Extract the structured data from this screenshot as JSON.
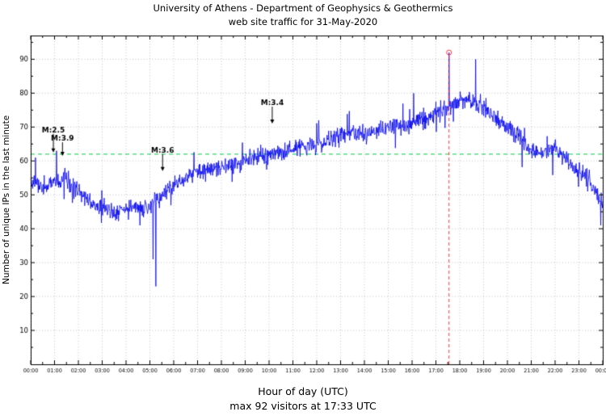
{
  "chart_data": {
    "type": "line",
    "title": "University of Athens - Department of Geophysics & Geothermics",
    "subtitle": "web site traffic for 31-May-2020",
    "xlabel": "Hour of day (UTC)",
    "ylabel": "Number of unique IPs in the last minute",
    "caption": "max 92 visitors at 17:33 UTC",
    "x_minutes_range": [
      0,
      1440
    ],
    "ylim": [
      0,
      97
    ],
    "y_ticks": [
      10,
      20,
      30,
      40,
      50,
      60,
      70,
      80,
      90
    ],
    "x_tick_minutes": [
      0,
      60,
      120,
      180,
      240,
      300,
      360,
      420,
      480,
      540,
      600,
      660,
      720,
      780,
      840,
      900,
      960,
      1020,
      1080,
      1140,
      1200,
      1260,
      1320,
      1380,
      1440
    ],
    "x_tick_labels": [
      "00:00",
      "01:00",
      "02:00",
      "03:00",
      "04:00",
      "05:00",
      "06:00",
      "07:00",
      "08:00",
      "09:00",
      "10:00",
      "11:00",
      "12:00",
      "13:00",
      "14:00",
      "15:00",
      "16:00",
      "17:00",
      "18:00",
      "19:00",
      "20:00",
      "21:00",
      "22:00",
      "23:00",
      "00:00"
    ],
    "grid": true,
    "legend": "none",
    "series_name": "unique IPs per minute",
    "series_anchor_step_minutes": 30,
    "series_anchors": [
      54,
      52,
      54,
      54,
      51,
      48,
      46,
      45,
      46,
      46,
      47,
      50,
      53,
      55,
      57,
      57,
      58,
      59,
      60,
      61,
      62,
      63,
      63,
      64,
      65,
      66,
      68,
      68,
      68,
      69,
      70,
      70,
      71,
      72,
      74,
      76,
      78,
      78,
      75,
      73,
      70,
      67,
      63,
      62,
      64,
      60,
      57,
      54,
      47
    ],
    "noise_sd": 3.2,
    "spike_probability": 0.05,
    "spike_amplitude": 13,
    "forced_points": [
      {
        "minute": 12,
        "value": 61
      },
      {
        "minute": 65,
        "value": 63
      },
      {
        "minute": 275,
        "value": 41
      },
      {
        "minute": 308,
        "value": 31
      },
      {
        "minute": 315,
        "value": 23
      },
      {
        "minute": 725,
        "value": 72
      },
      {
        "minute": 1053,
        "value": 92
      },
      {
        "minute": 1120,
        "value": 90
      },
      {
        "minute": 1435,
        "value": 41
      }
    ],
    "mean_line": {
      "value": 62,
      "color": "#00cc44",
      "style": "dashed"
    },
    "max_marker": {
      "minute": 1053,
      "value": 92,
      "time_label": "17:33",
      "color": "#ff3333"
    },
    "annotations": [
      {
        "label": "M:2.5",
        "minute": 57,
        "text_value": 68.5,
        "tip_value": 62.5
      },
      {
        "label": "M:3.9",
        "minute": 80,
        "text_value": 66.0,
        "tip_value": 61.5
      },
      {
        "label": "M:3.6",
        "minute": 332,
        "text_value": 62.5,
        "tip_value": 57.0
      },
      {
        "label": "M:3.4",
        "minute": 608,
        "text_value": 76.5,
        "tip_value": 71.0
      }
    ],
    "colors": {
      "line": "#0000ee",
      "grid": "#b4b4b4",
      "axis": "#000000",
      "text": "#000000"
    }
  }
}
